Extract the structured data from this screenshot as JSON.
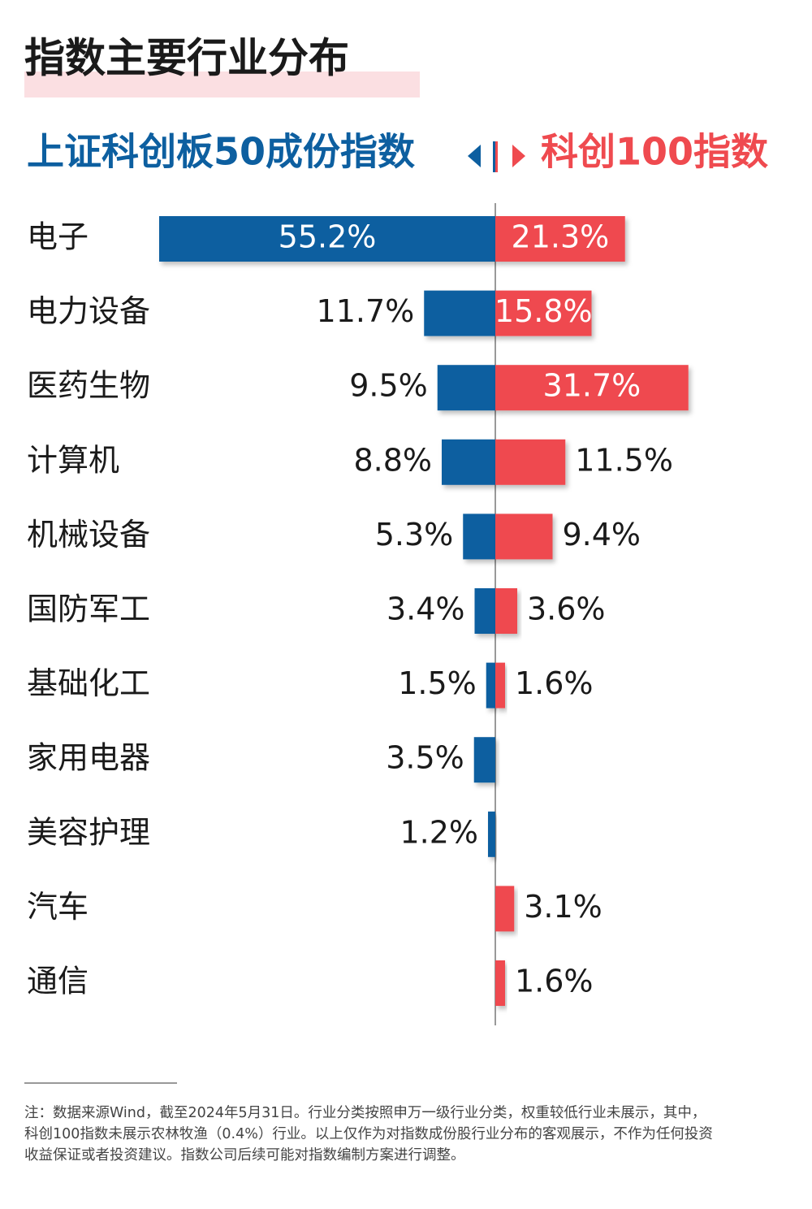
{
  "chart_data": {
    "type": "butterfly",
    "title": "指数主要行业分布",
    "categories": [
      "电子",
      "电力设备",
      "医药生物",
      "计算机",
      "机械设备",
      "国防军工",
      "基础化工",
      "家用电器",
      "美容护理",
      "汽车",
      "通信"
    ],
    "series": [
      {
        "name": "上证科创板50成份指数",
        "color": "#0d5fa0",
        "side": "left",
        "values": [
          55.2,
          11.7,
          9.5,
          8.8,
          5.3,
          3.4,
          1.5,
          3.5,
          1.2,
          null,
          null
        ],
        "value_labels": [
          "55.2%",
          "11.7%",
          "9.5%",
          "8.8%",
          "5.3%",
          "3.4%",
          "1.5%",
          "3.5%",
          "1.2%",
          null,
          null
        ]
      },
      {
        "name": "科创100指数",
        "color": "#ef4a4f",
        "side": "right",
        "values": [
          21.3,
          15.8,
          31.7,
          11.5,
          9.4,
          3.6,
          1.6,
          null,
          null,
          3.1,
          1.6
        ],
        "value_labels": [
          "21.3%",
          "15.8%",
          "31.7%",
          "11.5%",
          "9.4%",
          "3.6%",
          "1.6%",
          null,
          null,
          "3.1%",
          "1.6%"
        ]
      }
    ],
    "footnote": [
      "注：数据来源Wind，截至2024年5月31日。行业分类按照申万一级行业分类，权重较低行业未展示，其中，",
      "科创100指数未展示农林牧渔（0.4%）行业。以上仅作为对指数成份股行业分布的客观展示，不作为任何投资",
      "收益保证或者投资建议。指数公司后续可能对指数编制方案进行调整。"
    ]
  }
}
